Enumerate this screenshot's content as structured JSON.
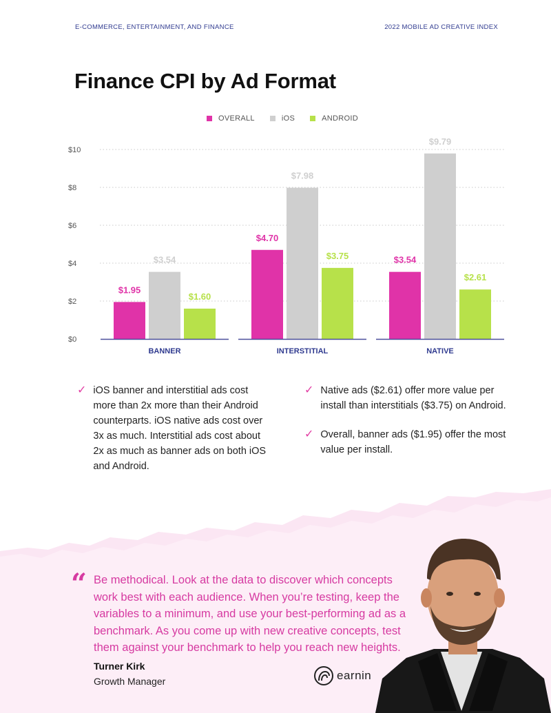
{
  "header": {
    "left": "E-COMMERCE, ENTERTAINMENT, AND FINANCE",
    "right": "2022 MOBILE AD CREATIVE INDEX"
  },
  "title": "Finance CPI by Ad Format",
  "colors": {
    "overall": "#e033a8",
    "ios": "#cfcfcf",
    "android": "#b7e14a",
    "axis": "#4b4f9c",
    "accent": "#d63aa1"
  },
  "chart_data": {
    "type": "bar",
    "categories": [
      "BANNER",
      "INTERSTITIAL",
      "NATIVE"
    ],
    "series": [
      {
        "name": "OVERALL",
        "values": [
          1.95,
          4.7,
          3.54
        ],
        "labels": [
          "$1.95",
          "$4.70",
          "$3.54"
        ]
      },
      {
        "name": "iOS",
        "values": [
          3.54,
          7.98,
          9.79
        ],
        "labels": [
          "$3.54",
          "$7.98",
          "$9.79"
        ]
      },
      {
        "name": "ANDROID",
        "values": [
          1.6,
          3.75,
          2.61
        ],
        "labels": [
          "$1.60",
          "$3.75",
          "$2.61"
        ]
      }
    ],
    "yticks": [
      "$0",
      "$2",
      "$4",
      "$6",
      "$8",
      "$10"
    ],
    "ylim": [
      0,
      10
    ],
    "grid": true,
    "legend_position": "top-center"
  },
  "bullets_left": [
    "iOS banner and interstitial ads cost more than 2x more than their Android counterparts. iOS native ads cost over 3x as much. Interstitial ads cost about 2x as much as banner ads on both iOS and Android."
  ],
  "bullets_right": [
    "Native ads ($2.61) offer more value per install than interstitials ($3.75) on Android.",
    "Overall, banner ads ($1.95) offer the most value per install."
  ],
  "quote": {
    "text": "Be methodical. Look at the data to discover which concepts work best with each audience. When you’re testing, keep the variables to a minimum, and use your best-performing ad as a benchmark. As you come up with new creative concepts, test them against your benchmark to help you reach new heights.",
    "name": "Turner Kirk",
    "role": "Growth Manager"
  },
  "logo": {
    "text": "earnin"
  }
}
